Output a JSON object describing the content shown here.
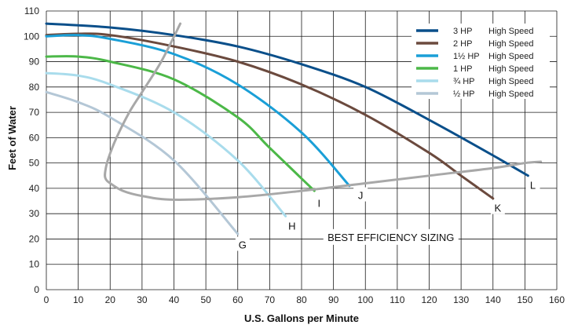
{
  "chart_data": {
    "type": "line",
    "title": "",
    "xlabel": "U.S. Gallons per Minute",
    "ylabel": "Feet of Water",
    "xlim": [
      0,
      160
    ],
    "ylim": [
      0,
      110
    ],
    "xticks": [
      "0",
      "10",
      "20",
      "30",
      "40",
      "50",
      "60",
      "70",
      "80",
      "90",
      "100",
      "110",
      "120",
      "130",
      "140",
      "150",
      "160"
    ],
    "yticks": [
      "0",
      "10",
      "20",
      "30",
      "40",
      "50",
      "60",
      "70",
      "80",
      "90",
      "100",
      "110"
    ],
    "grid": true,
    "legend_position": "top-right",
    "series": [
      {
        "name": "3 HP",
        "speed": "High Speed",
        "color": "#0a4f8a",
        "end_label": "L",
        "x": [
          0,
          20,
          40,
          60,
          80,
          100,
          120,
          140,
          151
        ],
        "y": [
          105,
          103.5,
          100.5,
          96,
          89,
          80,
          67,
          53,
          45
        ]
      },
      {
        "name": "2 HP",
        "speed": "High Speed",
        "color": "#6b4a3e",
        "end_label": "K",
        "x": [
          0,
          10,
          20,
          40,
          60,
          80,
          100,
          120,
          130,
          140
        ],
        "y": [
          100.5,
          101,
          100.5,
          96,
          90,
          81,
          69,
          54,
          45,
          36
        ]
      },
      {
        "name": "1½ HP",
        "speed": "High Speed",
        "color": "#1a9fd7",
        "end_label": "J",
        "x": [
          0,
          10,
          20,
          40,
          60,
          80,
          95
        ],
        "y": [
          100,
          100.5,
          99,
          93,
          81,
          62,
          41
        ]
      },
      {
        "name": "1 HP",
        "speed": "High Speed",
        "color": "#4cb848",
        "end_label": "I",
        "x": [
          0,
          10,
          20,
          40,
          60,
          70,
          84
        ],
        "y": [
          92,
          92,
          90,
          83,
          68,
          56,
          39
        ]
      },
      {
        "name": "¾ HP",
        "speed": "High Speed",
        "color": "#a9dcec",
        "end_label": "H",
        "x": [
          0,
          10,
          20,
          40,
          60,
          75
        ],
        "y": [
          85.5,
          84.5,
          81,
          70,
          51,
          29
        ]
      },
      {
        "name": "½ HP",
        "speed": "High Speed",
        "color": "#b4c7d6",
        "end_label": "G",
        "x": [
          0,
          10,
          20,
          40,
          60
        ],
        "y": [
          78,
          74,
          68,
          51,
          22
        ]
      }
    ],
    "efficiency_curve": {
      "label": "BEST EFFICIENCY SIZING",
      "color": "#a8a8a8",
      "x": [
        42,
        36,
        30,
        26,
        22,
        19.5,
        18.5,
        18.5,
        20,
        24,
        30,
        40,
        60,
        80,
        100,
        120,
        140,
        150,
        155
      ],
      "y": [
        105,
        90,
        78,
        70,
        60,
        52,
        47,
        44,
        42,
        39,
        37,
        35.5,
        36.5,
        39,
        42,
        45,
        48,
        50,
        50.5
      ]
    }
  }
}
